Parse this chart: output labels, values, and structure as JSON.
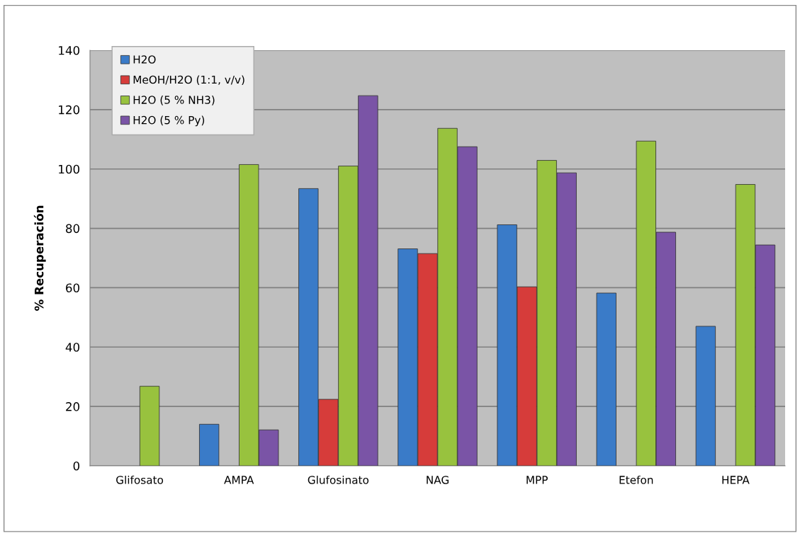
{
  "chart_data": {
    "type": "bar",
    "ylabel": "% Recuperación",
    "categories": [
      "Glifosato",
      "AMPA",
      "Glufosinato",
      "NAG",
      "MPP",
      "Etefon",
      "HEPA"
    ],
    "series": [
      {
        "name": "H2O",
        "color": "#3a7bc8",
        "values": [
          null,
          14.0,
          93.4,
          73.1,
          81.2,
          58.2,
          47.0
        ]
      },
      {
        "name": "MeOH/H2O (1:1, v/v)",
        "color": "#d63c3a",
        "values": [
          null,
          null,
          22.4,
          71.5,
          60.3,
          null,
          null
        ]
      },
      {
        "name": "H2O (5 % NH3)",
        "color": "#98c23e",
        "values": [
          26.8,
          101.5,
          101.0,
          113.7,
          102.9,
          109.4,
          94.8
        ]
      },
      {
        "name": "H2O (5 % Py)",
        "color": "#7a54a6",
        "values": [
          null,
          12.1,
          124.7,
          107.5,
          98.7,
          78.7,
          74.4
        ]
      }
    ],
    "ylim": [
      0,
      140
    ],
    "yticks": [
      0,
      20,
      40,
      60,
      80,
      100,
      120,
      140
    ],
    "grid": "y",
    "legend": "top left"
  }
}
